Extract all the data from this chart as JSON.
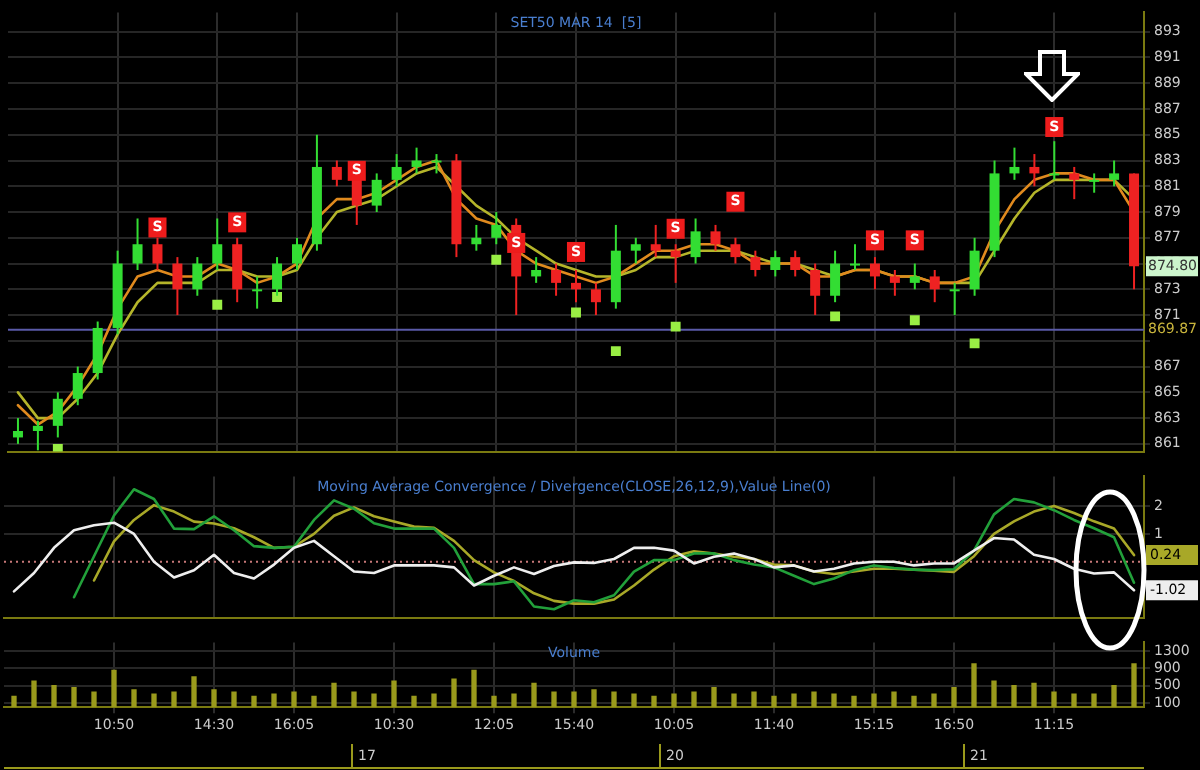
{
  "chart_data": [
    {
      "type": "candlestick",
      "title": "SET50 MAR 14  [5]",
      "tick_labels": "y",
      "grid": true,
      "categories": [
        null,
        null,
        null,
        null,
        null,
        null,
        null,
        null,
        null,
        null,
        null,
        null,
        null,
        null,
        null,
        null,
        null,
        null,
        null,
        null,
        null,
        null,
        null,
        null,
        null,
        null,
        null,
        null,
        null,
        null,
        null,
        null,
        null,
        null,
        null,
        null,
        null,
        null,
        null,
        null,
        null,
        null,
        null,
        null,
        null,
        null,
        null,
        null,
        null,
        null,
        null,
        null,
        null,
        null,
        null,
        null,
        null
      ],
      "ohlc": [
        [
          861.5,
          863,
          861,
          862
        ],
        [
          862,
          862.8,
          860.5,
          862.4
        ],
        [
          862.4,
          865,
          861.5,
          864.5
        ],
        [
          864.5,
          867,
          864,
          866.5
        ],
        [
          866.5,
          870.5,
          866,
          870
        ],
        [
          870,
          876,
          869.5,
          875
        ],
        [
          875,
          878.5,
          874.5,
          876.5
        ],
        [
          876.5,
          877,
          874.5,
          875
        ],
        [
          875,
          875.5,
          871,
          873
        ],
        [
          873,
          875.5,
          872.5,
          875
        ],
        [
          875,
          878.5,
          874.5,
          876.5
        ],
        [
          876.5,
          877,
          872,
          873
        ],
        [
          873,
          874,
          871.5,
          873
        ],
        [
          873,
          875.5,
          872.5,
          875
        ],
        [
          875,
          877,
          874.5,
          876.5
        ],
        [
          876.5,
          885,
          876,
          882.5
        ],
        [
          882.5,
          883,
          881,
          881.5
        ],
        [
          881.5,
          882,
          878,
          879.5
        ],
        [
          879.5,
          882,
          879,
          881.5
        ],
        [
          881.5,
          883.5,
          881,
          882.5
        ],
        [
          882.5,
          884,
          882,
          883
        ],
        [
          883,
          883.5,
          882,
          883
        ],
        [
          883,
          883.5,
          875.5,
          876.5
        ],
        [
          876.5,
          878,
          876,
          877
        ],
        [
          877,
          879,
          876.5,
          878
        ],
        [
          878,
          878.5,
          871,
          874
        ],
        [
          874,
          875.5,
          873.5,
          874.5
        ],
        [
          874.5,
          875,
          872.5,
          873.5
        ],
        [
          873.5,
          874.5,
          872,
          873
        ],
        [
          873,
          873.5,
          871,
          872
        ],
        [
          872,
          878,
          871.5,
          876
        ],
        [
          876,
          877,
          875,
          876.5
        ],
        [
          876.5,
          878,
          875.5,
          876
        ],
        [
          876,
          876.5,
          873.5,
          875.5
        ],
        [
          875.5,
          878.5,
          875,
          877.5
        ],
        [
          877.5,
          878,
          876,
          876.5
        ],
        [
          876.5,
          877,
          875,
          875.5
        ],
        [
          875.5,
          876,
          874,
          874.5
        ],
        [
          874.5,
          876,
          874,
          875.5
        ],
        [
          875.5,
          876,
          874,
          874.5
        ],
        [
          874.5,
          875,
          871,
          872.5
        ],
        [
          872.5,
          876,
          872,
          875
        ],
        [
          875,
          876.5,
          874.5,
          875
        ],
        [
          875,
          875.5,
          873,
          874
        ],
        [
          874,
          874.5,
          872.5,
          873.5
        ],
        [
          873.5,
          875,
          873,
          874
        ],
        [
          874,
          874.5,
          872,
          873
        ],
        [
          873,
          873.5,
          871,
          873
        ],
        [
          873,
          877,
          872.5,
          876
        ],
        [
          876,
          883,
          875.5,
          882
        ],
        [
          882,
          884,
          881.5,
          882.5
        ],
        [
          882.5,
          883.5,
          881,
          882
        ],
        [
          882,
          884.5,
          881.5,
          882
        ],
        [
          882,
          882.5,
          880,
          881.5
        ],
        [
          881.5,
          882,
          880.5,
          881.5
        ],
        [
          881.5,
          883,
          881,
          882
        ],
        [
          882,
          882,
          873,
          874.8
        ]
      ],
      "colors": [
        "#33dd33",
        "#33dd33",
        "#33dd33",
        "#33dd33",
        "#33dd33",
        "#33dd33",
        "#33dd33",
        "#ee2222",
        "#ee2222",
        "#33dd33",
        "#33dd33",
        "#ee2222",
        "#33dd33",
        "#33dd33",
        "#33dd33",
        "#33dd33",
        "#ee2222",
        "#ee2222",
        "#33dd33",
        "#33dd33",
        "#33dd33",
        "#33dd33",
        "#ee2222",
        "#33dd33",
        "#33dd33",
        "#ee2222",
        "#33dd33",
        "#ee2222",
        "#ee2222",
        "#ee2222",
        "#33dd33",
        "#33dd33",
        "#ee2222",
        "#ee2222",
        "#33dd33",
        "#ee2222",
        "#ee2222",
        "#ee2222",
        "#33dd33",
        "#ee2222",
        "#ee2222",
        "#33dd33",
        "#33dd33",
        "#ee2222",
        "#ee2222",
        "#33dd33",
        "#ee2222",
        "#33dd33",
        "#33dd33",
        "#33dd33",
        "#33dd33",
        "#ee2222",
        "#33dd33",
        "#ee2222",
        "#33dd33",
        "#33dd33",
        "#ee2222"
      ],
      "series": [
        {
          "type": "line",
          "color": "#e08a1e",
          "values": [
            864,
            862.5,
            863.5,
            865.5,
            868,
            871.5,
            874,
            874.5,
            874,
            874,
            875,
            874.5,
            873.5,
            874,
            875,
            878.5,
            880,
            880,
            880.5,
            881.5,
            882.5,
            883,
            880,
            878.5,
            878,
            876,
            875,
            874.5,
            874,
            873.5,
            874,
            875,
            876,
            876,
            876.5,
            876.5,
            876,
            875,
            875,
            875,
            874,
            874,
            874.5,
            874.5,
            874,
            874,
            873.5,
            873.5,
            874,
            877.5,
            880,
            881.5,
            882,
            882,
            881.5,
            881.5,
            879
          ]
        },
        {
          "type": "line",
          "color": "#b5b52a",
          "values": [
            865,
            863,
            863,
            864.5,
            866.5,
            869.5,
            872,
            873.5,
            873.5,
            873.5,
            874.5,
            874.5,
            874,
            874,
            874.5,
            877,
            879,
            879.5,
            880,
            881,
            882,
            882.5,
            881,
            879.5,
            878.5,
            877,
            876,
            875,
            874.5,
            874,
            874,
            874.5,
            875.5,
            875.5,
            876,
            876,
            876,
            875.5,
            875,
            875,
            874.5,
            874,
            874.5,
            874.5,
            874,
            874,
            873.5,
            873.5,
            873.5,
            876,
            878.5,
            880.5,
            881.5,
            881.5,
            881.5,
            881.5,
            880
          ]
        },
        {
          "type": "scatter",
          "marker": "square",
          "color": "#99ee44",
          "values": [
            null,
            null,
            860.6,
            null,
            null,
            null,
            null,
            null,
            null,
            null,
            871.8,
            null,
            null,
            872.4,
            null,
            null,
            null,
            null,
            null,
            null,
            null,
            null,
            null,
            null,
            875.3,
            null,
            null,
            null,
            871.2,
            null,
            868.2,
            null,
            null,
            870.1,
            null,
            null,
            null,
            null,
            null,
            null,
            null,
            870.9,
            null,
            null,
            null,
            870.6,
            null,
            null,
            868.8,
            null,
            null,
            null,
            null,
            null,
            null,
            null,
            null
          ]
        },
        {
          "type": "scatter",
          "marker": "square",
          "color": "#ee1c1c",
          "values": [
            null,
            null,
            null,
            null,
            null,
            null,
            null,
            877.8,
            null,
            null,
            null,
            878.2,
            null,
            null,
            null,
            null,
            null,
            882.2,
            null,
            null,
            null,
            null,
            null,
            null,
            null,
            876.6,
            null,
            null,
            875.9,
            null,
            null,
            null,
            null,
            877.7,
            null,
            null,
            879.8,
            null,
            null,
            null,
            null,
            null,
            null,
            876.8,
            null,
            876.8,
            null,
            null,
            null,
            null,
            null,
            null,
            885.6,
            null,
            null,
            null,
            null
          ],
          "value_labels": [
            null,
            null,
            null,
            null,
            null,
            null,
            null,
            "S",
            null,
            null,
            null,
            "S",
            null,
            null,
            null,
            null,
            null,
            "S",
            null,
            null,
            null,
            null,
            null,
            null,
            null,
            "S",
            null,
            null,
            "S",
            null,
            null,
            null,
            null,
            "S",
            null,
            null,
            "S",
            null,
            null,
            null,
            null,
            null,
            null,
            "S",
            null,
            "S",
            null,
            null,
            null,
            null,
            null,
            null,
            "S",
            null,
            null,
            null,
            null
          ]
        }
      ],
      "annotations": [
        "874.80"
      ],
      "ref_lines": [
        {
          "axis": "y",
          "value": 869.87,
          "label": "869.87",
          "color": "#5a5aa8"
        }
      ],
      "ylim": [
        860.4,
        894.5
      ],
      "yticks": [
        861,
        863,
        865,
        867,
        {
          "value": 869,
          "label": null
        },
        871,
        873,
        875,
        877,
        879,
        881,
        883,
        885,
        887,
        889,
        891,
        893
      ]
    },
    {
      "type": "line",
      "title": "Moving Average Convergence / Divergence(CLOSE,26,12,9),Value Line(0)",
      "tick_labels": "y",
      "grid": true,
      "categories": [
        null,
        null,
        null,
        null,
        null,
        null,
        null,
        null,
        null,
        null,
        null,
        null,
        null,
        null,
        null,
        null,
        null,
        null,
        null,
        null,
        null,
        null,
        null,
        null,
        null,
        null,
        null,
        null,
        null,
        null,
        null,
        null,
        null,
        null,
        null,
        null,
        null,
        null,
        null,
        null,
        null,
        null,
        null,
        null,
        null,
        null,
        null,
        null,
        null,
        null,
        null,
        null,
        null,
        null,
        null,
        null,
        null
      ],
      "series": [
        {
          "color": "#eeeeee",
          "values": [
            -1.06,
            -0.4,
            0.5,
            1.13,
            1.31,
            1.4,
            1,
            0,
            -0.56,
            -0.3,
            0.25,
            -0.4,
            -0.6,
            -0.1,
            0.5,
            0.75,
            0.2,
            -0.35,
            -0.4,
            -0.13,
            -0.13,
            -0.13,
            -0.2,
            -0.85,
            -0.5,
            -0.2,
            -0.44,
            -0.15,
            -0.02,
            -0.04,
            0.1,
            0.5,
            0.5,
            0.4,
            -0.06,
            0.18,
            0.3,
            0.1,
            -0.2,
            -0.13,
            -0.35,
            -0.25,
            -0.06,
            0,
            0,
            -0.13,
            -0.06,
            -0.06,
            0.4,
            0.85,
            0.8,
            0.25,
            0.1,
            -0.25,
            -0.42,
            -0.38,
            -1.02
          ],
          "value_labels": [
            null,
            null,
            null,
            null,
            null,
            null,
            null,
            null,
            null,
            null,
            null,
            null,
            null,
            null,
            null,
            null,
            null,
            null,
            null,
            null,
            null,
            null,
            null,
            null,
            null,
            null,
            null,
            null,
            null,
            null,
            null,
            null,
            null,
            null,
            null,
            null,
            null,
            null,
            null,
            null,
            null,
            null,
            null,
            null,
            null,
            null,
            null,
            null,
            null,
            null,
            null,
            null,
            null,
            null,
            null,
            null,
            "-1.02"
          ]
        },
        {
          "color": "#22a03a",
          "values": [
            null,
            null,
            null,
            -1.27,
            0.2,
            1.66,
            2.6,
            2.25,
            1.19,
            1.17,
            1.63,
            1.13,
            0.56,
            0.5,
            0.54,
            1.5,
            2.2,
            1.9,
            1.38,
            1.19,
            1.19,
            1.19,
            0.5,
            -0.8,
            -0.8,
            -0.7,
            -1.6,
            -1.7,
            -1.38,
            -1.45,
            -1.2,
            -0.35,
            0.06,
            0.06,
            0.3,
            0.3,
            0.06,
            -0.1,
            -0.2,
            -0.5,
            -0.8,
            -0.6,
            -0.3,
            -0.13,
            -0.22,
            -0.28,
            -0.3,
            -0.27,
            0.4,
            1.7,
            2.25,
            2.13,
            1.85,
            1.5,
            1.2,
            0.88,
            -0.75
          ]
        },
        {
          "color": "#a8a828",
          "values": [
            null,
            null,
            null,
            null,
            -0.67,
            0.73,
            1.5,
            2.03,
            1.8,
            1.44,
            1.37,
            1.2,
            0.88,
            0.5,
            0.54,
            1,
            1.65,
            1.95,
            1.63,
            1.44,
            1.26,
            1.22,
            0.75,
            0.06,
            -0.38,
            -0.69,
            -1.13,
            -1.4,
            -1.5,
            -1.5,
            -1.35,
            -0.85,
            -0.28,
            0.2,
            0.38,
            0.3,
            0.18,
            0.1,
            -0.1,
            -0.13,
            -0.35,
            -0.44,
            -0.35,
            -0.25,
            -0.25,
            -0.28,
            -0.32,
            -0.36,
            0.2,
            1,
            1.45,
            1.8,
            2,
            1.75,
            1.45,
            1.19,
            0.24
          ],
          "value_labels": [
            null,
            null,
            null,
            null,
            null,
            null,
            null,
            null,
            null,
            null,
            null,
            null,
            null,
            null,
            null,
            null,
            null,
            null,
            null,
            null,
            null,
            null,
            null,
            null,
            null,
            null,
            null,
            null,
            null,
            null,
            null,
            null,
            null,
            null,
            null,
            null,
            null,
            null,
            null,
            null,
            null,
            null,
            null,
            null,
            null,
            null,
            null,
            null,
            null,
            null,
            null,
            null,
            null,
            null,
            null,
            null,
            "0.24"
          ]
        }
      ],
      "ref_lines": [
        {
          "axis": "y",
          "value": 0,
          "color": "#c87878",
          "line_style": "dotted"
        }
      ],
      "ylim": [
        -2,
        3.06
      ],
      "yticks": [
        1,
        2
      ]
    },
    {
      "type": "bar",
      "title": "Volume",
      "grid": true,
      "color": "#9a9a1c",
      "categories": [
        null,
        null,
        null,
        null,
        null,
        "10:50",
        null,
        null,
        null,
        null,
        "14:30",
        null,
        null,
        null,
        "16:05",
        null,
        null,
        null,
        null,
        "10:30",
        null,
        null,
        null,
        null,
        "12:05",
        null,
        null,
        null,
        "15:40",
        null,
        null,
        null,
        null,
        "10:05",
        null,
        null,
        null,
        null,
        "11:40",
        null,
        null,
        null,
        null,
        "15:15",
        null,
        null,
        null,
        "16:50",
        null,
        null,
        null,
        null,
        "11:15",
        null,
        null,
        null,
        null
      ],
      "values": [
        250,
        600,
        500,
        450,
        350,
        850,
        400,
        300,
        350,
        700,
        400,
        350,
        250,
        300,
        350,
        250,
        550,
        350,
        300,
        600,
        250,
        300,
        650,
        850,
        250,
        300,
        550,
        350,
        350,
        400,
        350,
        300,
        250,
        300,
        350,
        450,
        300,
        350,
        250,
        300,
        350,
        300,
        250,
        300,
        350,
        250,
        300,
        450,
        1000,
        600,
        500,
        550,
        350,
        300,
        300,
        500,
        1000
      ],
      "annotations": [
        "17",
        "20",
        "21"
      ],
      "ylim": [
        0,
        1500
      ],
      "yticks": [
        100,
        500,
        900,
        1300
      ]
    }
  ]
}
